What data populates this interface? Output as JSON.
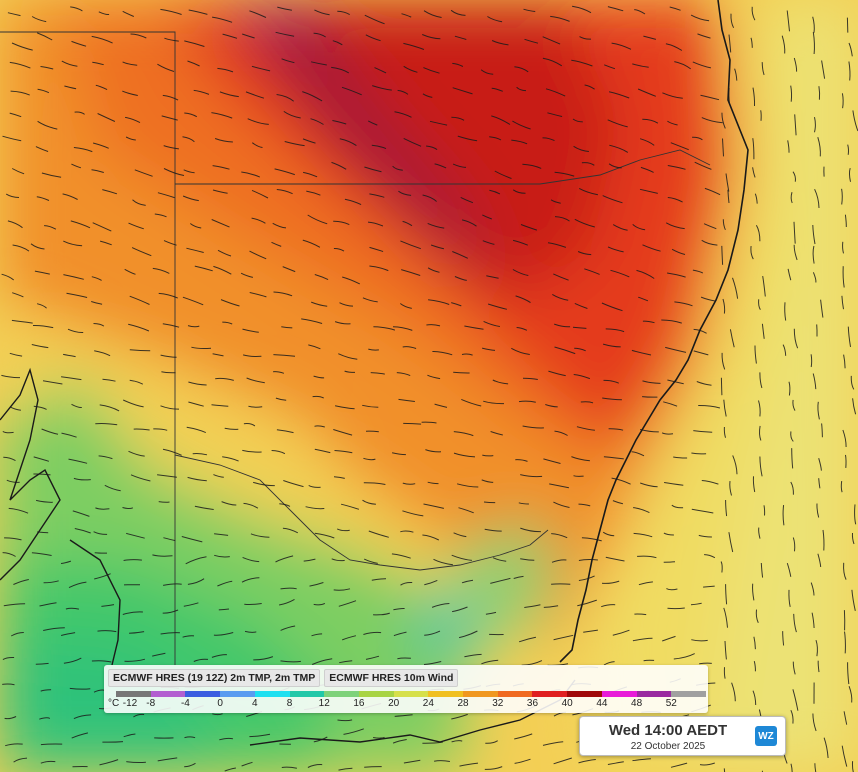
{
  "legend": {
    "title_temperature": "ECMWF HRES (19 12Z) 2m TMP, 2m TMP",
    "title_wind": "ECMWF HRES 10m Wind",
    "unit": "°C",
    "scale_labels": [
      "-12",
      "-8",
      "-4",
      "0",
      "4",
      "8",
      "12",
      "16",
      "20",
      "24",
      "28",
      "32",
      "36",
      "40",
      "44",
      "48",
      "52"
    ],
    "scale_colors": [
      "#777777",
      "#b25fd0",
      "#3a5de0",
      "#5a9cf0",
      "#1ee0f0",
      "#22c8a8",
      "#7ed27a",
      "#a8d444",
      "#d6e04a",
      "#f0c020",
      "#f09820",
      "#f06a20",
      "#e02020",
      "#a00808",
      "#e81cd8",
      "#9a2aa0",
      "#a0a0a0"
    ]
  },
  "timestamp": {
    "time": "Wed 14:00 AEDT",
    "date": "22 October 2025"
  },
  "brand": {
    "logo_text": "WZ"
  },
  "map": {
    "layer": "temperature",
    "overlay": "wind-streamlines"
  }
}
